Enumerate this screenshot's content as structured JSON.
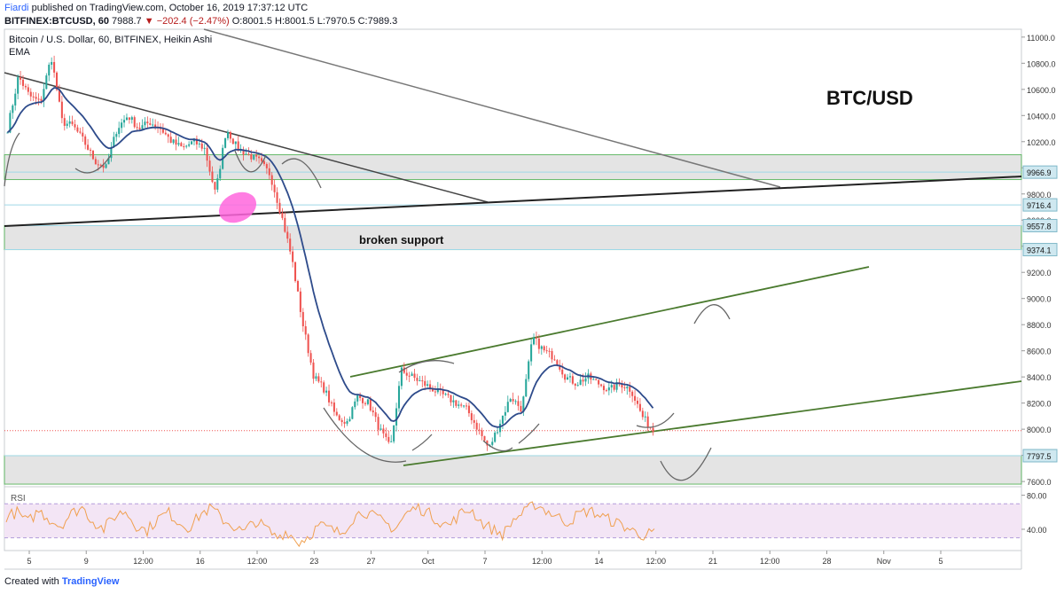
{
  "header": {
    "author": "Fiardi",
    "published": "published on TradingView.com, October 16, 2019 17:37:12 UTC",
    "symbol": "BITFINEX:BTCUSD, 60",
    "last_price": "7988.7",
    "change": "▼ −202.4 (−2.47%)",
    "ohlc": "O:8001.5 H:8001.5 L:7970.5 C:7989.3"
  },
  "legend": {
    "title": "Bitcoin / U.S. Dollar, 60, BITFINEX, Heikin Ashi",
    "indicator": "EMA"
  },
  "annotations": {
    "pair_label": "BTC/USD",
    "support_label": "broken support"
  },
  "footer": {
    "created_with": "Created with",
    "brand": "TradingView"
  },
  "colors": {
    "candle_up": "#26a69a",
    "candle_down": "#ef5350",
    "ema": "#2e4b8b",
    "zone_fill": "#e0e0e0",
    "zone_border": "#4caf50",
    "channel": "#4a7a2e",
    "trend_dark": "#222222",
    "trend_grey": "#777777",
    "rsi": "#f0a050",
    "rsi_band": "#f3e5f5",
    "ellipse": "#ff66dd"
  },
  "chart_data": {
    "type": "line",
    "subtype": "heikin-ashi candlestick",
    "y_axis": {
      "ticks": [
        11000,
        10800,
        10600,
        10400,
        10200,
        10000,
        9800,
        9600,
        9400,
        9200,
        9000,
        8800,
        8600,
        8400,
        8200,
        8000,
        7800,
        7600
      ],
      "tick_labels": [
        "11000.0",
        "10800.0",
        "10600.0",
        "10400.0",
        "10200.0",
        "10000.0",
        "9800.0",
        "9600.0",
        "9400.0",
        "9200.0",
        "9000.0",
        "8800.0",
        "8600.0",
        "8400.0",
        "8200.0",
        "8000.0",
        "7800.0",
        "7600.0"
      ],
      "range": [
        7560,
        11060
      ],
      "highlighted_levels": [
        {
          "value": 9966.9,
          "label": "9966.9"
        },
        {
          "value": 9716.4,
          "label": "9716.4"
        },
        {
          "value": 9557.8,
          "label": "9557.8"
        },
        {
          "value": 9374.1,
          "label": "9374.1"
        },
        {
          "value": 7797.5,
          "label": "7797.5"
        }
      ],
      "current_price": 7989.3
    },
    "x_axis": {
      "tick_labels": [
        "5",
        "9",
        "12:00",
        "16",
        "12:00",
        "23",
        "27",
        "Oct",
        "7",
        "12:00",
        "14",
        "12:00",
        "21",
        "12:00",
        "28",
        "Nov",
        "5"
      ]
    },
    "series": [
      {
        "price_path": [
          10300,
          10700,
          10550,
          10500,
          10850,
          10350,
          10320,
          10200,
          10050,
          10000,
          10300,
          10400,
          10300,
          10350,
          10300,
          10200,
          10150,
          10200,
          10150,
          9800,
          10300,
          10150,
          10100,
          10050,
          9950,
          9650,
          9300,
          8800,
          8400,
          8300,
          8100,
          8050,
          8250,
          8200,
          8000,
          7850,
          8450,
          8400,
          8350,
          8300,
          8250,
          8200,
          8150,
          8000,
          7850,
          8050,
          8250,
          8150,
          8700,
          8600,
          8550,
          8400,
          8350,
          8400,
          8350,
          8300,
          8350,
          8300,
          8100,
          7990
        ]
      },
      {
        "name": "EMA"
      }
    ],
    "zones": [
      {
        "from": 9910,
        "to": 10100
      },
      {
        "from": 9374.1,
        "to": 9557.8
      },
      {
        "from": 7580,
        "to": 7797.5
      }
    ],
    "rsi": {
      "label": "RSI",
      "tick_labels": [
        "80.00",
        "40.00"
      ],
      "ticks": [
        80,
        40
      ],
      "band": [
        30,
        70
      ],
      "range": [
        15,
        90
      ],
      "values": [
        55,
        60,
        48,
        62,
        52,
        44,
        58,
        66,
        50,
        40,
        55,
        62,
        45,
        38,
        52,
        60,
        48,
        42,
        58,
        65,
        52,
        44,
        36,
        50,
        42,
        30,
        38,
        24,
        32,
        45,
        40,
        35,
        52,
        62,
        55,
        48,
        40,
        58,
        66,
        60,
        50,
        44,
        58,
        64,
        48,
        40,
        34,
        52,
        60,
        70,
        62,
        55,
        48,
        58,
        62,
        56,
        50,
        45,
        38,
        33,
        36
      ]
    }
  }
}
